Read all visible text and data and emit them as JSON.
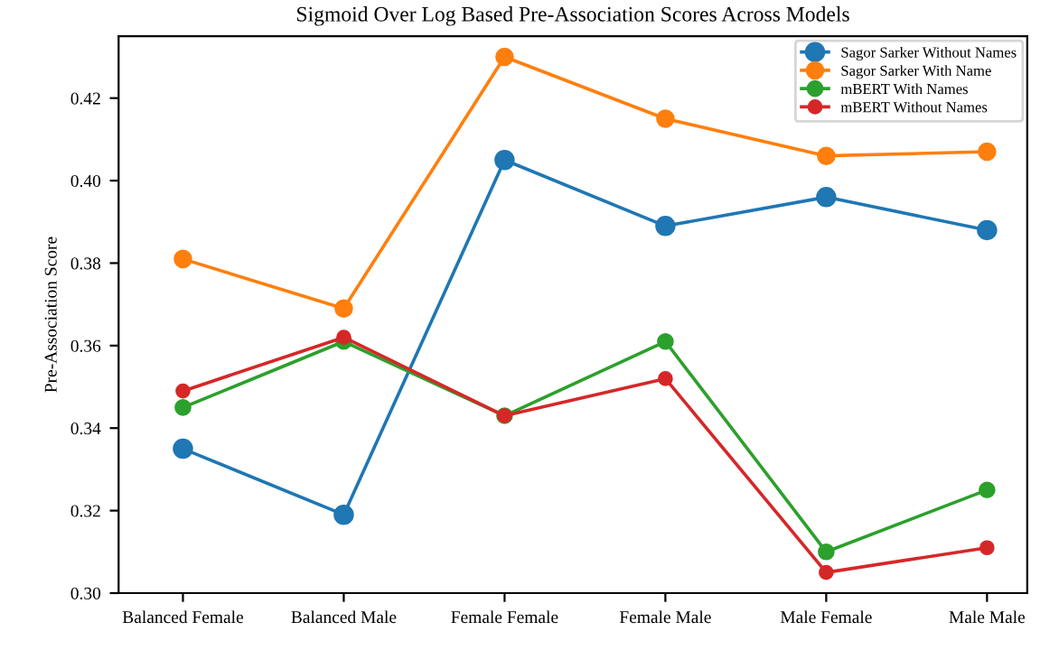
{
  "chart_data": {
    "type": "line",
    "title": "Sigmoid Over Log Based Pre-Association Scores Across Models",
    "ylabel": "Pre-Association Score",
    "categories": [
      "Balanced Female",
      "Balanced Male",
      "Female Female",
      "Female Male",
      "Male Female",
      "Male Male"
    ],
    "series": [
      {
        "name": "Sagor Sarker Without Names",
        "color": "#1f77b4",
        "values": [
          0.335,
          0.319,
          0.405,
          0.389,
          0.396,
          0.388
        ]
      },
      {
        "name": "Sagor Sarker With Name",
        "color": "#ff7f0e",
        "values": [
          0.381,
          0.369,
          0.43,
          0.415,
          0.406,
          0.407
        ]
      },
      {
        "name": "mBERT With Names",
        "color": "#2ca02c",
        "values": [
          0.345,
          0.361,
          0.343,
          0.361,
          0.31,
          0.325
        ]
      },
      {
        "name": "mBERT Without Names",
        "color": "#d62728",
        "values": [
          0.349,
          0.362,
          0.343,
          0.352,
          0.305,
          0.311
        ]
      }
    ],
    "ylim": [
      0.3,
      0.435
    ],
    "yticks": [
      {
        "value": 0.3,
        "label": "0.30"
      },
      {
        "value": 0.32,
        "label": "0.32"
      },
      {
        "value": 0.34,
        "label": "0.34"
      },
      {
        "value": 0.36,
        "label": "0.36"
      },
      {
        "value": 0.38,
        "label": "0.38"
      },
      {
        "value": 0.4,
        "label": "0.40"
      },
      {
        "value": 0.42,
        "label": "0.42"
      }
    ],
    "marker": "circle",
    "line_style": "solid",
    "legend": "top right",
    "grid": false
  }
}
